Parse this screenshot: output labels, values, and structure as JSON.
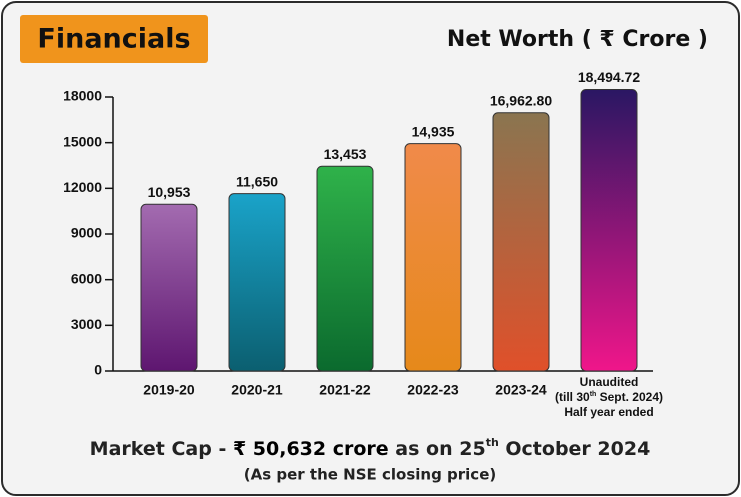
{
  "chart_data": {
    "type": "bar",
    "badge": "Financials",
    "title": "Net Worth ( ₹ Crore )",
    "categories": [
      "2019-20",
      "2020-21",
      "2021-22",
      "2022-23",
      "2023-24",
      [
        "Unaudited",
        [
          "(till 30",
          "th",
          " Sept. 2024)"
        ],
        "Half year ended"
      ]
    ],
    "values": [
      10953,
      11650,
      13453,
      14935,
      16962.8,
      18494.72
    ],
    "value_labels": [
      "10,953",
      "11,650",
      "13,453",
      "14,935",
      "16,962.80",
      "18,494.72"
    ],
    "colors": [
      [
        "#a36bb0",
        "#5e1670"
      ],
      [
        "#1aa3c9",
        "#0b5f70"
      ],
      [
        "#2fb24a",
        "#0b6a2e"
      ],
      [
        "#f08a4a",
        "#e6891a"
      ],
      [
        "#8a7550",
        "#e0502a"
      ],
      [
        "#2a1763",
        "#f0168a"
      ]
    ],
    "ylim": [
      0,
      18000
    ],
    "yticks": [
      0,
      3000,
      6000,
      9000,
      12000,
      15000,
      18000
    ],
    "footer": [
      "Market Cap - ",
      "₹ 50,632 crore",
      " as on 25",
      "th",
      " October 2024"
    ],
    "footnote": "(As per the NSE closing price)"
  }
}
